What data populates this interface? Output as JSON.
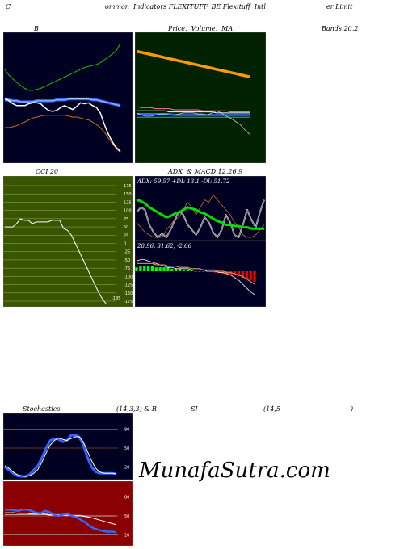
{
  "header": {
    "c1": "C",
    "c2": "ommon  Indicators FLEXITUFF_BE Flexituff  Intl",
    "c3": "er Limit"
  },
  "labels": {
    "bb_b": "B",
    "price_ma": "Price,  Volume,  MA",
    "bands": "Bands 20,2",
    "cci": "CCI 20",
    "adx_macd": "ADX  & MACD 12,26,9",
    "stoch_a": "Stochastics",
    "stoch_b": "(14,3,3) & R",
    "stoch_c": "SI",
    "stoch_d": "(14,5",
    "stoch_e": ")"
  },
  "watermark": "MunafaSutra.com",
  "colors": {
    "dark_bg": "#000022",
    "green_bg": "#002200",
    "cci_bg": "#3a5500",
    "rsi_bg": "#8b0000"
  },
  "chart_data": [
    {
      "id": "bollinger",
      "type": "line",
      "series": [
        {
          "values": [
            88,
            82,
            78,
            74,
            71,
            68,
            66,
            66,
            67,
            68,
            70,
            72,
            74,
            76,
            78,
            80,
            82,
            84,
            86,
            88,
            90,
            91,
            92,
            93,
            95,
            98,
            101,
            104,
            108,
            115
          ]
        },
        {
          "values": [
            56,
            56,
            55,
            55,
            54,
            54,
            54,
            54,
            55,
            55,
            55,
            55,
            55,
            56,
            56,
            56,
            57,
            57,
            57,
            57,
            57,
            57,
            56,
            56,
            55,
            54,
            53,
            52,
            51,
            50
          ]
        },
        {
          "values": [
            27,
            27,
            28,
            29,
            31,
            33,
            35,
            37,
            38,
            39,
            40,
            40,
            40,
            40,
            40,
            40,
            39,
            38,
            38,
            37,
            36,
            35,
            33,
            30,
            27,
            22,
            16,
            10,
            5,
            1
          ]
        },
        {
          "values": [
            58,
            55,
            52,
            50,
            50,
            50,
            52,
            53,
            53,
            52,
            48,
            45,
            44,
            45,
            48,
            50,
            48,
            46,
            49,
            53,
            52,
            53,
            50,
            48,
            42,
            30,
            20,
            12,
            6,
            2
          ]
        }
      ]
    },
    {
      "id": "price-volume-ma",
      "type": "line",
      "series": [
        {
          "values": [
            96,
            95,
            94,
            93,
            92,
            91,
            90,
            89,
            88,
            87,
            86,
            85,
            84,
            83,
            82,
            81,
            80,
            79,
            78,
            77,
            76,
            75,
            74,
            73,
            72
          ]
        },
        {
          "values": [
            44,
            43,
            43,
            43,
            42,
            42,
            42,
            42,
            41,
            41,
            41,
            41,
            41,
            41,
            40,
            40,
            40,
            40,
            40,
            40,
            39,
            39,
            39,
            39,
            39
          ]
        },
        {
          "values": [
            40,
            40,
            40,
            40,
            40,
            40,
            40,
            39,
            39,
            39,
            39,
            39,
            39,
            39,
            39,
            39,
            39,
            38,
            38,
            38,
            38,
            38,
            38,
            38,
            38
          ]
        },
        {
          "values": [
            37,
            37,
            37,
            37,
            37,
            37,
            37,
            37,
            36,
            36,
            36,
            36,
            36,
            36,
            36,
            36,
            36,
            36,
            36,
            36,
            36,
            36,
            36,
            36,
            36
          ]
        },
        {
          "values": [
            34,
            34,
            34,
            34,
            34,
            34,
            34,
            34,
            34,
            34,
            34,
            34,
            34,
            34,
            34,
            34,
            34,
            34,
            34,
            34,
            34,
            34,
            34,
            34,
            34
          ]
        },
        {
          "values": [
            38,
            36,
            35,
            35,
            36,
            37,
            37,
            36,
            36,
            37,
            38,
            38,
            38,
            37,
            37,
            36,
            38,
            40,
            38,
            35,
            33,
            30,
            27,
            22,
            18
          ]
        }
      ]
    },
    {
      "id": "cci",
      "type": "line",
      "ticks": [
        "175",
        "150",
        "125",
        "100",
        "75",
        "50",
        "25",
        "0",
        "-25",
        "-50",
        "-75",
        "-100",
        "-125",
        "-150",
        "-175"
      ],
      "last_value_label": "-185",
      "values": [
        50,
        50,
        50,
        60,
        75,
        70,
        70,
        60,
        65,
        65,
        65,
        65,
        70,
        70,
        70,
        45,
        40,
        25,
        0,
        -25,
        -50,
        -75,
        -100,
        -125,
        -150,
        -170,
        -185
      ]
    },
    {
      "id": "adx",
      "type": "line",
      "label": "ADX: 59.57  +DI: 13.1  -DI: 51.72",
      "series": [
        {
          "values": [
            30,
            29,
            27,
            24,
            22,
            20,
            18,
            16,
            17,
            19,
            20,
            22,
            24,
            23,
            22,
            20,
            19,
            17,
            15,
            13,
            12,
            10,
            10,
            9,
            9,
            8,
            8,
            7,
            7,
            7,
            7
          ]
        },
        {
          "values": [
            20,
            24,
            22,
            10,
            4,
            0,
            3,
            0,
            6,
            14,
            21,
            18,
            10,
            6,
            2,
            8,
            16,
            12,
            4,
            0,
            6,
            18,
            12,
            2,
            0,
            10,
            22,
            14,
            8,
            20,
            30
          ]
        },
        {
          "values": [
            12,
            8,
            4,
            2,
            0,
            0,
            0,
            6,
            10,
            14,
            16,
            22,
            28,
            24,
            18,
            24,
            30,
            28,
            34,
            30,
            26,
            22,
            18,
            12,
            8,
            2,
            0,
            0,
            2,
            6,
            10
          ]
        }
      ]
    },
    {
      "id": "macd",
      "type": "bar",
      "label": "28.96,  31.62,  -2.66",
      "series": [
        {
          "values": [
            3,
            4,
            4,
            4,
            4,
            3,
            3,
            3,
            3,
            2,
            2,
            2,
            1,
            1,
            1,
            0,
            0,
            0,
            0,
            0,
            -1,
            -1,
            -2,
            -2,
            -3,
            -3,
            -4,
            -5,
            -6,
            -7,
            -8
          ]
        },
        {
          "values": [
            8,
            9,
            9,
            8,
            7,
            6,
            5,
            4,
            3,
            3,
            2,
            2,
            2,
            2,
            1,
            1,
            1,
            1,
            0,
            0,
            0,
            -1,
            -1,
            -2,
            -3,
            -5,
            -7,
            -10,
            -13,
            -16,
            -18
          ]
        },
        {
          "values": [
            6,
            6,
            6,
            6,
            6,
            5,
            5,
            5,
            4,
            4,
            4,
            3,
            3,
            3,
            2,
            2,
            2,
            1,
            1,
            1,
            1,
            0,
            0,
            -1,
            -1,
            -2,
            -3,
            -4,
            -6,
            -8,
            -10
          ]
        }
      ]
    },
    {
      "id": "stochastics",
      "type": "line",
      "ticks": [
        "80",
        "50",
        "20"
      ],
      "series": [
        {
          "values": [
            20,
            15,
            10,
            6,
            5,
            5,
            8,
            15,
            22,
            35,
            50,
            62,
            65,
            64,
            60,
            62,
            70,
            71,
            68,
            55,
            35,
            20,
            12,
            10,
            10,
            10,
            10,
            9
          ]
        },
        {
          "values": [
            22,
            18,
            12,
            8,
            6,
            5,
            6,
            10,
            16,
            28,
            42,
            55,
            62,
            66,
            64,
            62,
            65,
            68,
            68,
            60,
            45,
            30,
            18,
            12,
            10,
            10,
            10,
            9
          ]
        }
      ]
    },
    {
      "id": "rsi",
      "type": "line",
      "ticks": [
        "80",
        "50",
        "20"
      ],
      "series": [
        {
          "values": [
            55,
            55,
            55,
            54,
            54,
            54,
            53,
            53,
            53,
            53,
            52,
            52,
            52,
            51,
            51,
            51,
            50,
            50,
            49,
            48,
            46,
            44,
            42,
            40,
            38,
            36
          ]
        },
        {
          "values": [
            60,
            60,
            59,
            58,
            60,
            60,
            58,
            55,
            54,
            58,
            56,
            52,
            50,
            52,
            54,
            50,
            48,
            44,
            40,
            34,
            30,
            28,
            26,
            25,
            25,
            24
          ]
        },
        {
          "values": [
            52,
            52,
            52,
            52,
            52,
            52,
            52,
            52,
            52,
            52,
            51,
            51,
            51,
            51,
            51,
            51,
            51,
            51,
            50,
            50,
            50,
            50,
            50,
            50,
            50,
            50
          ]
        }
      ]
    }
  ]
}
